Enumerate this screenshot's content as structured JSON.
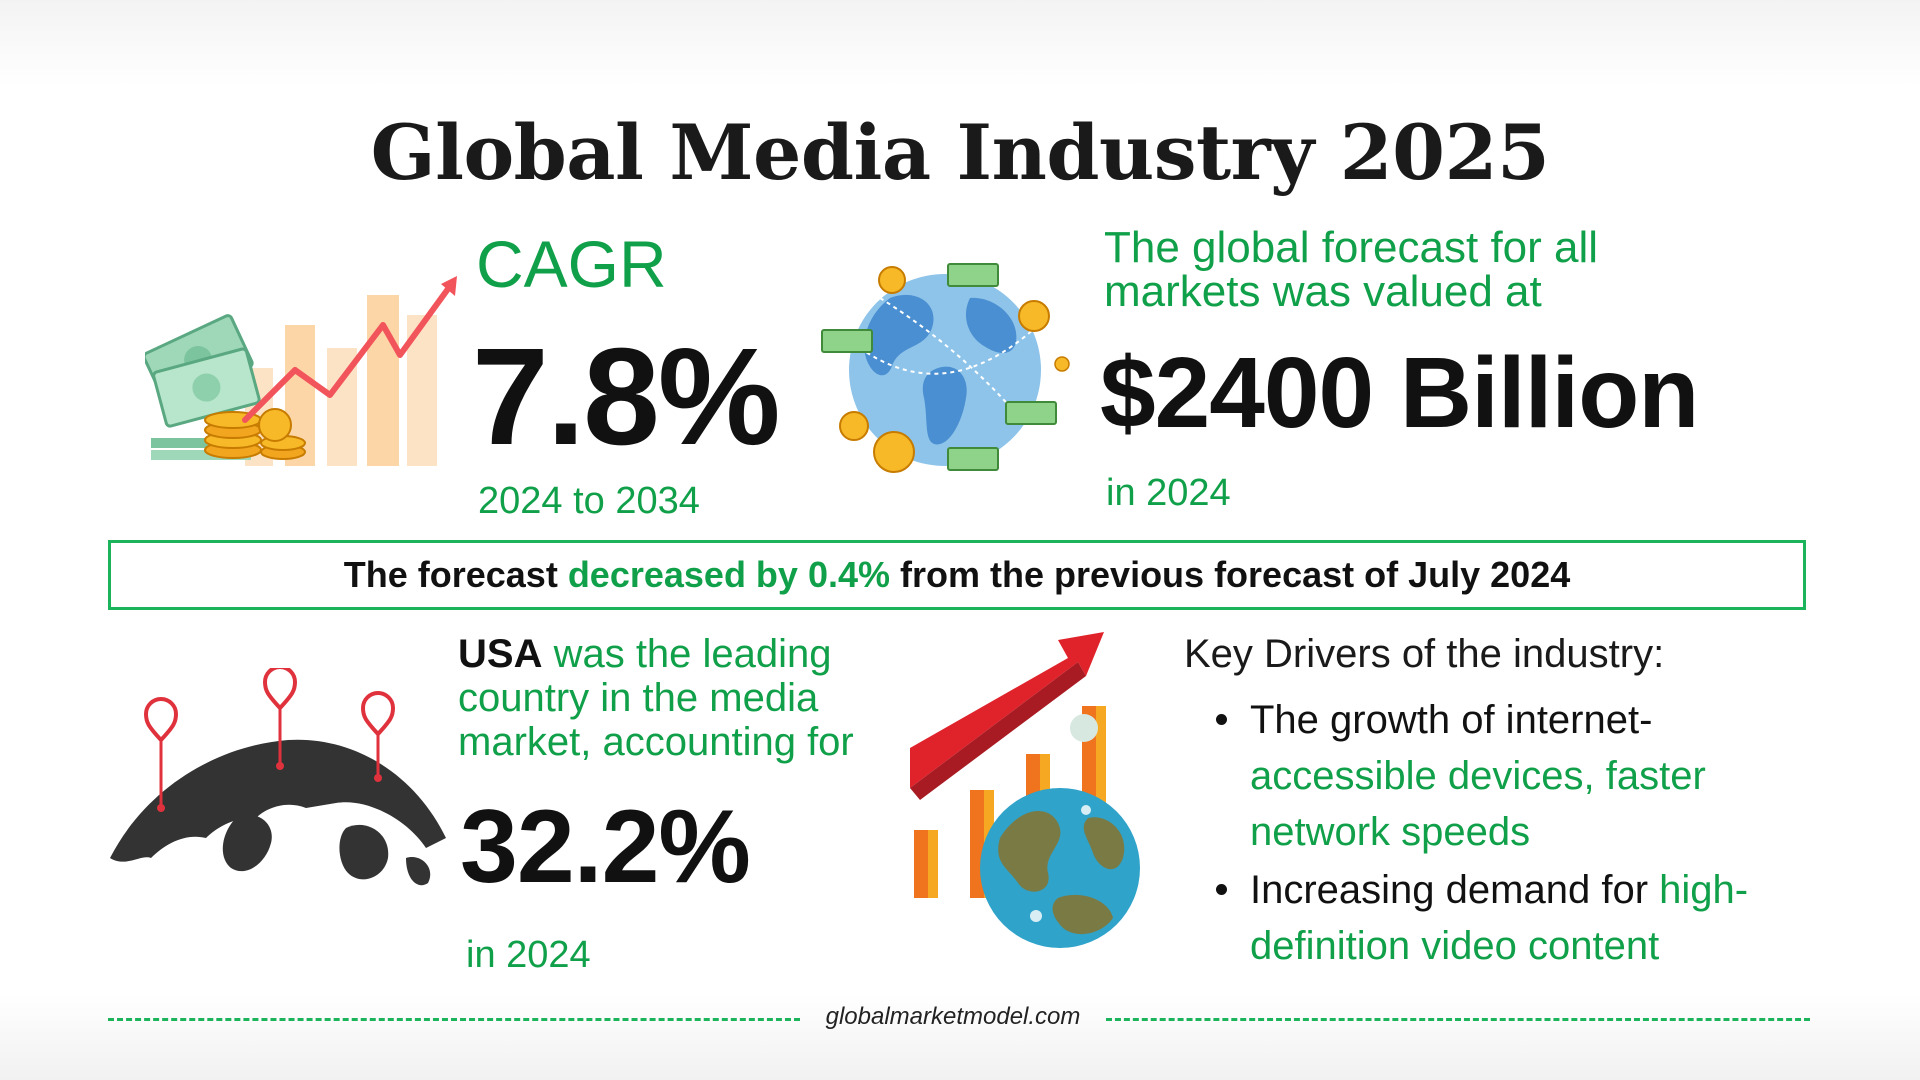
{
  "title": "Global Media Industry 2025",
  "cagr": {
    "label": "CAGR",
    "value": "7.8%",
    "period": "2024 to 2034"
  },
  "forecast": {
    "text": "The global forecast for all markets was valued at",
    "value": "$2400 Billion",
    "year": "in 2024"
  },
  "banner": {
    "prefix": "The forecast ",
    "highlight": "decreased by 0.4%",
    "suffix": " from the previous forecast of July 2024"
  },
  "usa": {
    "country": "USA",
    "text": " was the leading country in the media market, accounting for",
    "value": "32.2%",
    "year": "in 2024"
  },
  "drivers": {
    "heading": "Key Drivers of the industry:",
    "items": [
      {
        "plain": "The growth of internet-",
        "highlight": "accessible devices, faster network speeds"
      },
      {
        "plain": "Increasing demand for ",
        "highlight": "high-definition video content"
      }
    ]
  },
  "footer": {
    "text": "globalmarketmodel.com"
  },
  "colors": {
    "accent": "#11a04a",
    "border": "#1cb45a",
    "text": "#111111"
  }
}
